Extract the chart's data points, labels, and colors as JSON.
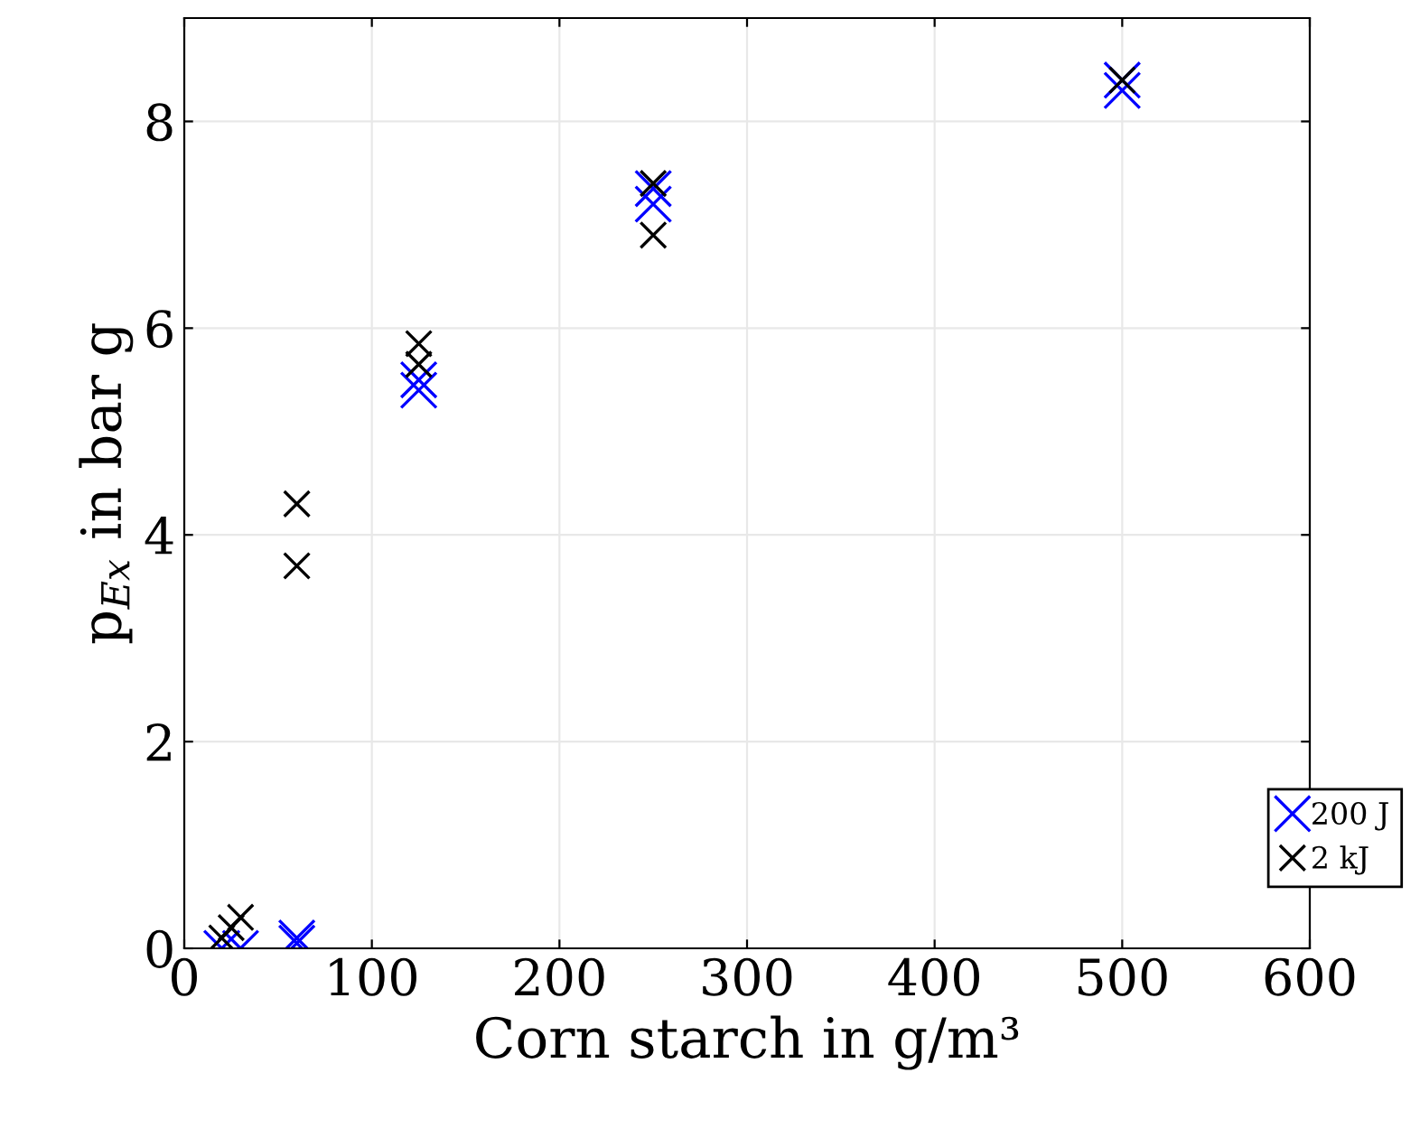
{
  "chart_data": {
    "type": "scatter",
    "xlabel": "Corn starch in g/m³",
    "ylabel": "p$_{Ex}$ in bar g",
    "xlim": [
      0,
      600
    ],
    "ylim": [
      0,
      9
    ],
    "xticks": [
      0,
      100,
      200,
      300,
      400,
      500,
      600
    ],
    "yticks": [
      0,
      2,
      4,
      6,
      8
    ],
    "grid": true,
    "legend": "bottom right",
    "marker": "cross",
    "series": [
      {
        "name": "200 J",
        "color": "#0000ff",
        "x": [
          20,
          30,
          60,
          60,
          125,
          125,
          250,
          250,
          500,
          500
        ],
        "values": [
          0,
          0,
          0.05,
          0.1,
          5.5,
          5.4,
          7.35,
          7.2,
          8.4,
          8.3
        ]
      },
      {
        "name": "2 kJ",
        "color": "#000000",
        "x": [
          20,
          25,
          30,
          60,
          60,
          125,
          125,
          250,
          250,
          500
        ],
        "values": [
          0.1,
          0.2,
          0.3,
          4.3,
          3.7,
          5.85,
          5.65,
          7.4,
          6.9,
          8.4
        ]
      }
    ]
  }
}
